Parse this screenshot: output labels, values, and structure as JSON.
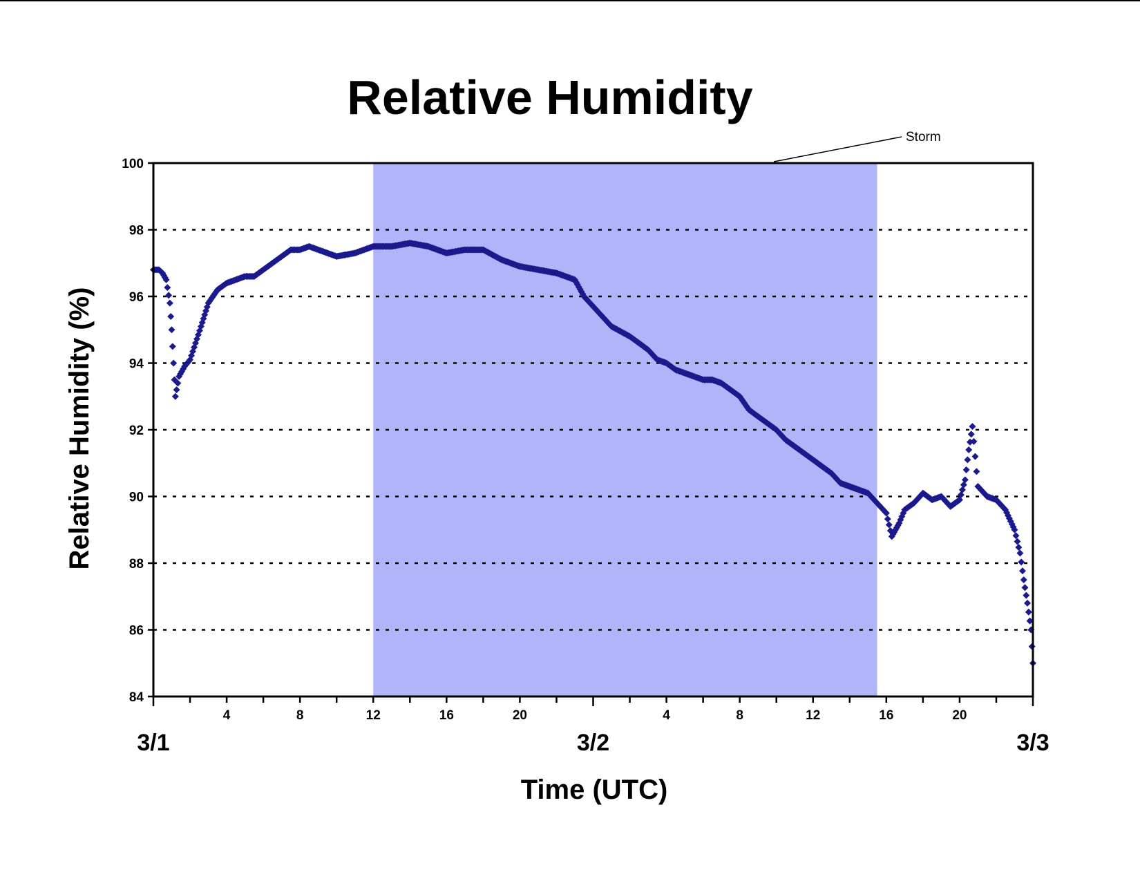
{
  "chart_data": {
    "type": "scatter",
    "title": "Relative Humidity",
    "xlabel": "Time (UTC)",
    "ylabel": "Relative Humidity (%)",
    "ylim": [
      84,
      100
    ],
    "yticks": [
      84,
      86,
      88,
      90,
      92,
      94,
      96,
      98,
      100
    ],
    "xlim_hours": [
      0,
      48
    ],
    "hour_ticks": [
      {
        "hour": 4,
        "label": "4"
      },
      {
        "hour": 8,
        "label": "8"
      },
      {
        "hour": 12,
        "label": "12"
      },
      {
        "hour": 16,
        "label": "16"
      },
      {
        "hour": 20,
        "label": "20"
      },
      {
        "hour": 28,
        "label": "4"
      },
      {
        "hour": 32,
        "label": "8"
      },
      {
        "hour": 36,
        "label": "12"
      },
      {
        "hour": 40,
        "label": "16"
      },
      {
        "hour": 44,
        "label": "20"
      }
    ],
    "day_labels": [
      {
        "hour": 0,
        "label": "3/1"
      },
      {
        "hour": 24,
        "label": "3/2"
      },
      {
        "hour": 48,
        "label": "3/3"
      }
    ],
    "grid": "horizontal dotted",
    "marker_color": "#1a1a8c",
    "shaded_region": {
      "label": "Storm",
      "start_hour": 12,
      "end_hour": 39.5,
      "color": "#b0b4f8"
    },
    "series": [
      {
        "values": [
          [
            0,
            96.8
          ],
          [
            0.3,
            96.8
          ],
          [
            0.5,
            96.7
          ],
          [
            0.7,
            96.5
          ],
          [
            0.9,
            95.8
          ],
          [
            1.0,
            95.0
          ],
          [
            1.1,
            94.0
          ],
          [
            1.2,
            93.0
          ],
          [
            1.4,
            93.6
          ],
          [
            1.7,
            93.9
          ],
          [
            2.0,
            94.1
          ],
          [
            2.3,
            94.6
          ],
          [
            2.6,
            95.1
          ],
          [
            3.0,
            95.8
          ],
          [
            3.5,
            96.2
          ],
          [
            4.0,
            96.4
          ],
          [
            4.5,
            96.5
          ],
          [
            5.0,
            96.6
          ],
          [
            5.5,
            96.6
          ],
          [
            6.0,
            96.8
          ],
          [
            6.5,
            97.0
          ],
          [
            7.0,
            97.2
          ],
          [
            7.5,
            97.4
          ],
          [
            8.0,
            97.4
          ],
          [
            8.5,
            97.5
          ],
          [
            9.0,
            97.4
          ],
          [
            9.5,
            97.3
          ],
          [
            10.0,
            97.2
          ],
          [
            11.0,
            97.3
          ],
          [
            12.0,
            97.5
          ],
          [
            13.0,
            97.5
          ],
          [
            14.0,
            97.6
          ],
          [
            15.0,
            97.5
          ],
          [
            16.0,
            97.3
          ],
          [
            17.0,
            97.4
          ],
          [
            18.0,
            97.4
          ],
          [
            19.0,
            97.1
          ],
          [
            20.0,
            96.9
          ],
          [
            21.0,
            96.8
          ],
          [
            22.0,
            96.7
          ],
          [
            23.0,
            96.5
          ],
          [
            23.5,
            96.0
          ],
          [
            24.0,
            95.7
          ],
          [
            24.5,
            95.4
          ],
          [
            25.0,
            95.1
          ],
          [
            26.0,
            94.8
          ],
          [
            26.5,
            94.6
          ],
          [
            27.0,
            94.4
          ],
          [
            27.5,
            94.1
          ],
          [
            28.0,
            94.0
          ],
          [
            28.5,
            93.8
          ],
          [
            29.0,
            93.7
          ],
          [
            30.0,
            93.5
          ],
          [
            30.5,
            93.5
          ],
          [
            31.0,
            93.4
          ],
          [
            31.5,
            93.2
          ],
          [
            32.0,
            93.0
          ],
          [
            32.5,
            92.6
          ],
          [
            33.0,
            92.4
          ],
          [
            33.5,
            92.2
          ],
          [
            34.0,
            92.0
          ],
          [
            34.5,
            91.7
          ],
          [
            35.0,
            91.5
          ],
          [
            35.5,
            91.3
          ],
          [
            36.0,
            91.1
          ],
          [
            36.5,
            90.9
          ],
          [
            37.0,
            90.7
          ],
          [
            37.5,
            90.4
          ],
          [
            38.0,
            90.3
          ],
          [
            38.5,
            90.2
          ],
          [
            39.0,
            90.1
          ],
          [
            39.5,
            89.8
          ],
          [
            40.0,
            89.5
          ],
          [
            40.3,
            88.8
          ],
          [
            40.7,
            89.2
          ],
          [
            41.0,
            89.6
          ],
          [
            41.5,
            89.8
          ],
          [
            42.0,
            90.1
          ],
          [
            42.5,
            89.9
          ],
          [
            43.0,
            90.0
          ],
          [
            43.5,
            89.7
          ],
          [
            44.0,
            89.9
          ],
          [
            44.3,
            90.5
          ],
          [
            44.5,
            91.4
          ],
          [
            44.7,
            92.1
          ],
          [
            45.0,
            90.3
          ],
          [
            45.5,
            90.0
          ],
          [
            46.0,
            89.9
          ],
          [
            46.5,
            89.6
          ],
          [
            47.0,
            89.0
          ],
          [
            47.3,
            88.3
          ],
          [
            47.5,
            87.5
          ],
          [
            47.7,
            86.8
          ],
          [
            47.9,
            86.0
          ],
          [
            48.0,
            85.0
          ]
        ]
      }
    ]
  }
}
